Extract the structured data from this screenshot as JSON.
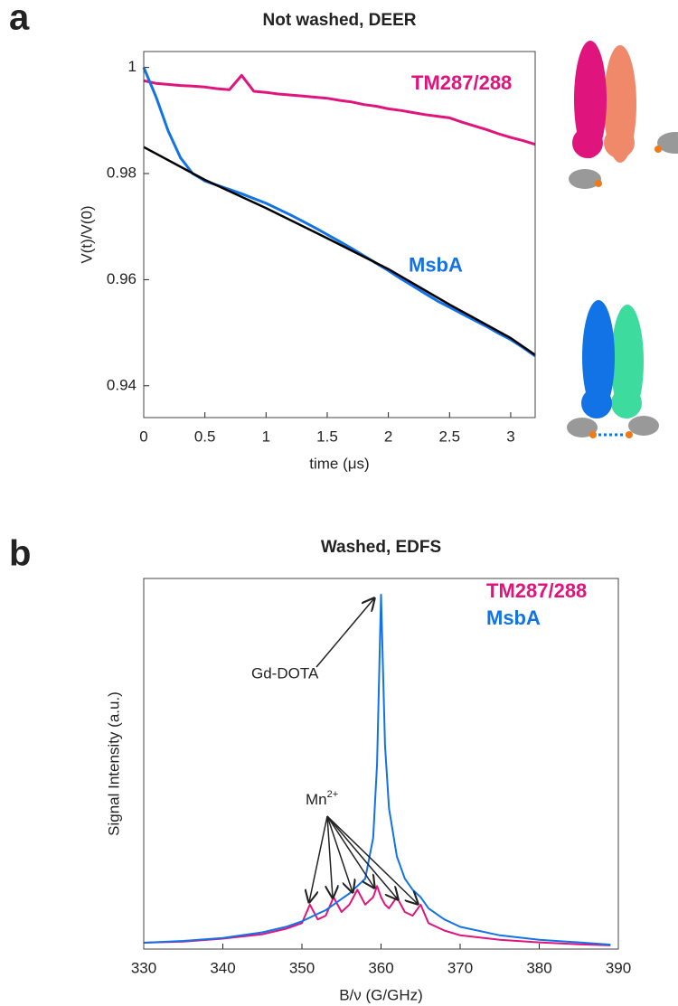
{
  "panels": [
    "a",
    "b"
  ],
  "chart_data": [
    {
      "type": "line",
      "title": "Not washed, DEER",
      "xlabel": "time (μs)",
      "ylabel": "V(t)/V(0)",
      "xlim": [
        0,
        3.2
      ],
      "ylim": [
        0.934,
        1.003
      ],
      "xticks": [
        0,
        0.5,
        1,
        1.5,
        2,
        2.5,
        3
      ],
      "yticks": [
        0.94,
        0.96,
        0.98,
        1
      ],
      "x": [
        0,
        0.1,
        0.2,
        0.3,
        0.4,
        0.5,
        0.6,
        0.7,
        0.8,
        0.9,
        1.0,
        1.1,
        1.2,
        1.3,
        1.4,
        1.5,
        1.6,
        1.7,
        1.8,
        1.9,
        2.0,
        2.1,
        2.2,
        2.3,
        2.4,
        2.5,
        2.6,
        2.7,
        2.8,
        2.9,
        3.0,
        3.1,
        3.2
      ],
      "series": [
        {
          "name": "TM287/288",
          "color": "#e0147d",
          "values": [
            0.9975,
            0.997,
            0.9968,
            0.9966,
            0.9965,
            0.9963,
            0.996,
            0.9958,
            0.9985,
            0.9955,
            0.9953,
            0.995,
            0.9948,
            0.9946,
            0.9944,
            0.9942,
            0.9938,
            0.9935,
            0.993,
            0.9927,
            0.9922,
            0.9919,
            0.9915,
            0.9911,
            0.9908,
            0.9905,
            0.9897,
            0.989,
            0.9883,
            0.9875,
            0.9868,
            0.9862,
            0.9855
          ]
        },
        {
          "name": "MsbA",
          "color": "#1273e6",
          "values": [
            1.0,
            0.9945,
            0.988,
            0.983,
            0.98,
            0.9786,
            0.9778,
            0.977,
            0.9762,
            0.9753,
            0.9744,
            0.9733,
            0.9722,
            0.971,
            0.9698,
            0.9685,
            0.9672,
            0.9659,
            0.9645,
            0.9631,
            0.9617,
            0.9602,
            0.9588,
            0.9574,
            0.956,
            0.9548,
            0.9536,
            0.9524,
            0.9512,
            0.9499,
            0.9487,
            0.9472,
            0.9456
          ]
        }
      ],
      "fit": {
        "color": "#000000",
        "x": [
          0,
          0.5,
          1,
          1.5,
          2,
          2.5,
          3,
          3.2
        ],
        "values": [
          0.985,
          0.9788,
          0.9735,
          0.9678,
          0.962,
          0.9553,
          0.949,
          0.9458
        ]
      },
      "label_at": [
        0.9968,
        0.9625
      ]
    },
    {
      "type": "line",
      "title": "Washed, EDFS",
      "xlabel": "B/ν (G/GHz)",
      "ylabel": "Signal Intensity (a.u.)",
      "xlim": [
        330,
        390
      ],
      "ylim": [
        0,
        1
      ],
      "xticks": [
        330,
        340,
        350,
        360,
        370,
        380,
        390
      ],
      "yticks": [],
      "x": [
        330,
        335,
        340,
        345,
        348,
        350,
        351,
        352,
        353,
        354,
        355,
        356,
        357,
        358,
        359,
        359.5,
        360,
        360.5,
        361,
        362,
        363,
        364,
        365,
        366,
        368,
        370,
        375,
        380,
        385,
        389
      ],
      "series": [
        {
          "name": "TM287/288",
          "color": "#e0147d",
          "values": [
            0.017,
            0.02,
            0.028,
            0.04,
            0.055,
            0.07,
            0.12,
            0.08,
            0.09,
            0.14,
            0.1,
            0.12,
            0.16,
            0.12,
            0.14,
            0.17,
            0.14,
            0.12,
            0.11,
            0.14,
            0.1,
            0.09,
            0.12,
            0.07,
            0.05,
            0.037,
            0.025,
            0.018,
            0.013,
            0.01
          ]
        },
        {
          "name": "MsbA",
          "color": "#1273e6",
          "values": [
            0.017,
            0.022,
            0.03,
            0.045,
            0.06,
            0.075,
            0.085,
            0.095,
            0.105,
            0.12,
            0.135,
            0.15,
            0.17,
            0.19,
            0.3,
            0.5,
            0.956,
            0.55,
            0.38,
            0.25,
            0.19,
            0.16,
            0.14,
            0.11,
            0.08,
            0.06,
            0.037,
            0.025,
            0.018,
            0.012
          ]
        }
      ],
      "annotations": [
        "Gd-DOTA",
        {
          "text": "Mn",
          "superscript": "2+"
        }
      ]
    }
  ]
}
